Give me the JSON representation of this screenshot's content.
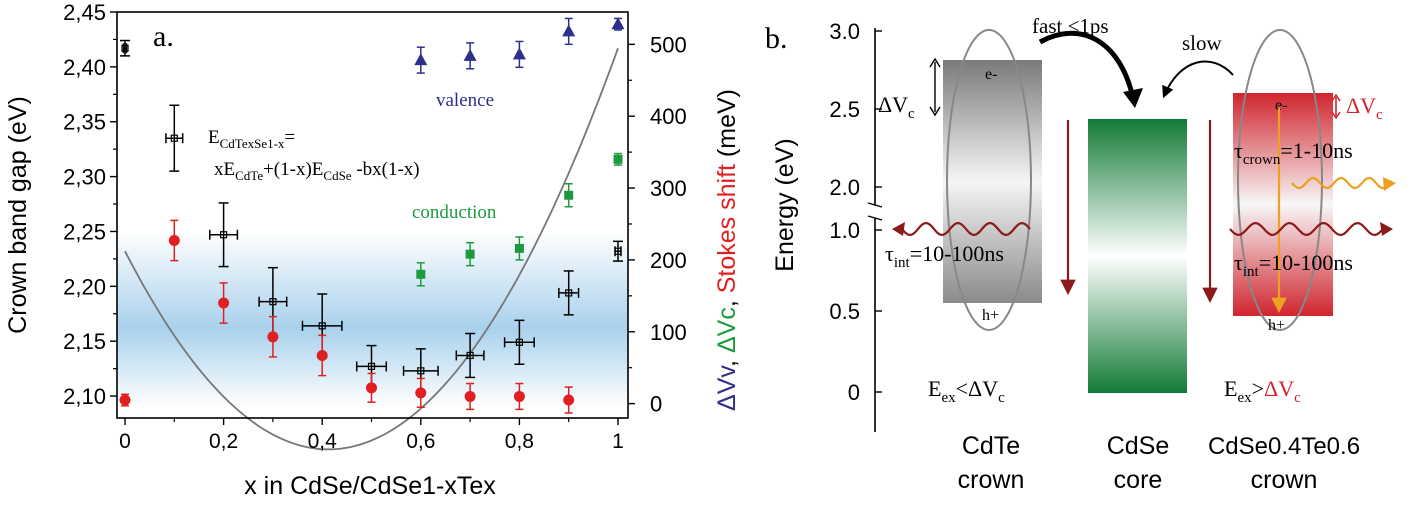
{
  "chart_data": [
    {
      "type": "scatter",
      "panel_label": "a.",
      "xlabel": "x in CdSe/CdSe1-xTex",
      "ylabel": "Crown band gap (eV)",
      "y2label_parts": [
        {
          "text": "ΔVv",
          "color": "#2e2e8c"
        },
        {
          "text": ", ",
          "color": "#000000"
        },
        {
          "text": "ΔVc",
          "color": "#1e9a3e"
        },
        {
          "text": ", ",
          "color": "#000000"
        },
        {
          "text": "Stokes shift",
          "color": "#e02020"
        },
        {
          "text": " (meV)",
          "color": "#000000"
        }
      ],
      "xlim": [
        0,
        1
      ],
      "ylim": [
        2.08,
        2.45
      ],
      "y2lim": [
        -20,
        545
      ],
      "xticks": [
        0,
        0.2,
        0.4,
        0.6,
        0.8,
        1
      ],
      "xtick_labels": [
        "0",
        "0,2",
        "0,4",
        "0,6",
        "0,8",
        "1"
      ],
      "yticks": [
        2.1,
        2.15,
        2.2,
        2.25,
        2.3,
        2.35,
        2.4,
        2.45
      ],
      "ytick_labels": [
        "2,10",
        "2,15",
        "2,20",
        "2,25",
        "2,30",
        "2,35",
        "2,40",
        "2,45"
      ],
      "y2ticks": [
        0,
        100,
        200,
        300,
        400,
        500
      ],
      "y2tick_labels": [
        "0",
        "100",
        "200",
        "300",
        "400",
        "500"
      ],
      "shaded_band_y": [
        2.09,
        2.25
      ],
      "formula_line1": "E",
      "formula_line1_sub": "CdTexSe1-x",
      "formula_line1_tail": "=",
      "formula_line2_parts": [
        {
          "text": "xE",
          "sub": false
        },
        {
          "text": "CdTe",
          "sub": true
        },
        {
          "text": "+(1-x)E",
          "sub": false
        },
        {
          "text": "CdSe",
          "sub": true
        },
        {
          "text": " -bx(1-x)",
          "sub": false
        }
      ],
      "series": [
        {
          "name": "Crown band gap",
          "axis": "left",
          "color": "#000000",
          "x": [
            0,
            0.1,
            0.2,
            0.3,
            0.4,
            0.5,
            0.6,
            0.7,
            0.8,
            0.9,
            1.0
          ],
          "y": [
            2.417,
            2.335,
            2.247,
            2.186,
            2.164,
            2.127,
            2.123,
            2.137,
            2.149,
            2.194,
            2.232
          ],
          "yerr": [
            0.007,
            0.03,
            0.029,
            0.031,
            0.029,
            0.019,
            0.02,
            0.02,
            0.02,
            0.02,
            0.009
          ],
          "xerr": [
            0.003,
            0.017,
            0.028,
            0.028,
            0.04,
            0.03,
            0.035,
            0.028,
            0.03,
            0.02,
            0.006
          ]
        },
        {
          "name": "Stokes shift",
          "axis": "right",
          "color": "#e02020",
          "x": [
            0,
            0.1,
            0.2,
            0.3,
            0.4,
            0.5,
            0.6,
            0.7,
            0.8,
            0.9,
            1.0
          ],
          "y": [
            5,
            227,
            140,
            93,
            67,
            22,
            15,
            10,
            10,
            5,
            null
          ],
          "err": [
            8,
            28,
            28,
            28,
            28,
            20,
            20,
            18,
            18,
            18,
            null
          ]
        },
        {
          "name": "conduction",
          "axis": "right",
          "color": "#1e9a3e",
          "x": [
            0.6,
            0.7,
            0.8,
            0.9,
            1.0
          ],
          "y": [
            180,
            208,
            216,
            290,
            340
          ],
          "err": [
            16,
            16,
            16,
            16,
            8
          ]
        },
        {
          "name": "valence",
          "axis": "right",
          "color": "#2e2e8c",
          "x": [
            0.6,
            0.7,
            0.8,
            0.9,
            1.0
          ],
          "y": [
            478,
            484,
            486,
            518,
            528
          ],
          "err": [
            18,
            18,
            18,
            18,
            8
          ]
        }
      ],
      "fit_curve": {
        "Eg_CdSe": 2.232,
        "Eg_CdTe": 2.417,
        "b": 1.06
      }
    },
    {
      "type": "diagram",
      "panel_label": "b.",
      "ylabel": "Energy (eV)",
      "upper_range": [
        1.8,
        3.0
      ],
      "lower_range": [
        -0.15,
        1.1
      ],
      "yticks_upper": [
        2.0,
        2.5,
        3.0
      ],
      "ytick_labels_upper": [
        "2.0",
        "2.5",
        "3.0"
      ],
      "yticks_lower": [
        0,
        0.5,
        1.0
      ],
      "ytick_labels_lower": [
        "0",
        "0.5",
        "1.0"
      ],
      "bands": [
        {
          "name": "CdTe crown",
          "top": 2.8,
          "bottom": 0.55,
          "top_color": "#8a8a8a",
          "bottom_color": "#8a8a8a"
        },
        {
          "name": "CdSe core",
          "top": 2.42,
          "bottom": 0.0,
          "top_color": "#157a3a",
          "bottom_color": "#157a3a"
        },
        {
          "name": "CdSe0.4Te0.6 crown",
          "top": 2.62,
          "bottom": 0.55,
          "top_color": "#d0252e",
          "bottom_color": "#d0252e"
        }
      ],
      "labels": {
        "fast": "fast <1ps",
        "slow": "slow",
        "e_minus": "e-",
        "h_plus": "h+",
        "dv": "ΔV",
        "dv_sub": "c",
        "tau_int": "τ",
        "tau_int_sub": "int",
        "tau_int_val": "=10-100ns",
        "tau_crown": "τ",
        "tau_crown_sub": "crown",
        "tau_crown_val": "=1-10ns",
        "e_ex": "E",
        "e_ex_sub": "ex",
        "lt": "<",
        "gt": ">"
      },
      "columns": [
        {
          "line1": "CdTe",
          "line2": "crown"
        },
        {
          "line1": "CdSe",
          "line2": "core"
        },
        {
          "line1": "CdSe0.4Te0.6",
          "line2": "crown"
        }
      ],
      "colors": {
        "arrow_dark": "#8b1a1a",
        "arrow_black": "#000000",
        "orange": "#f0a020",
        "red_text": "#d0252e"
      }
    }
  ]
}
